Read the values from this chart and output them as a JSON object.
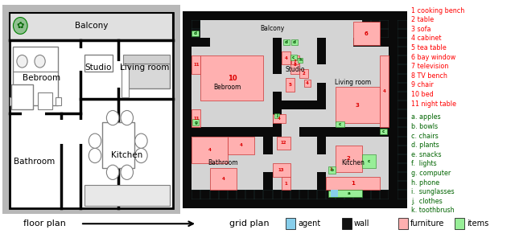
{
  "legend_items_furniture": [
    "1 cooking bench",
    "2 table",
    "3 sofa",
    "4 cabinet",
    "5 tea table",
    "6 bay window",
    "7 television",
    "8 TV bench",
    "9 chair",
    "10 bed",
    "11 night table"
  ],
  "legend_items_items": [
    "a. apples",
    "b. bowls",
    "c. chairs",
    "d. plants",
    "e. snacks",
    "f.  lights",
    "g. computer",
    "h. phone",
    "i.  sunglasses",
    "j.  clothes",
    "k. toothbrush"
  ],
  "legend_colors": {
    "agent": "#87CEEB",
    "wall": "#111111",
    "furniture": "#FFB6B6",
    "items": "#90EE90"
  }
}
